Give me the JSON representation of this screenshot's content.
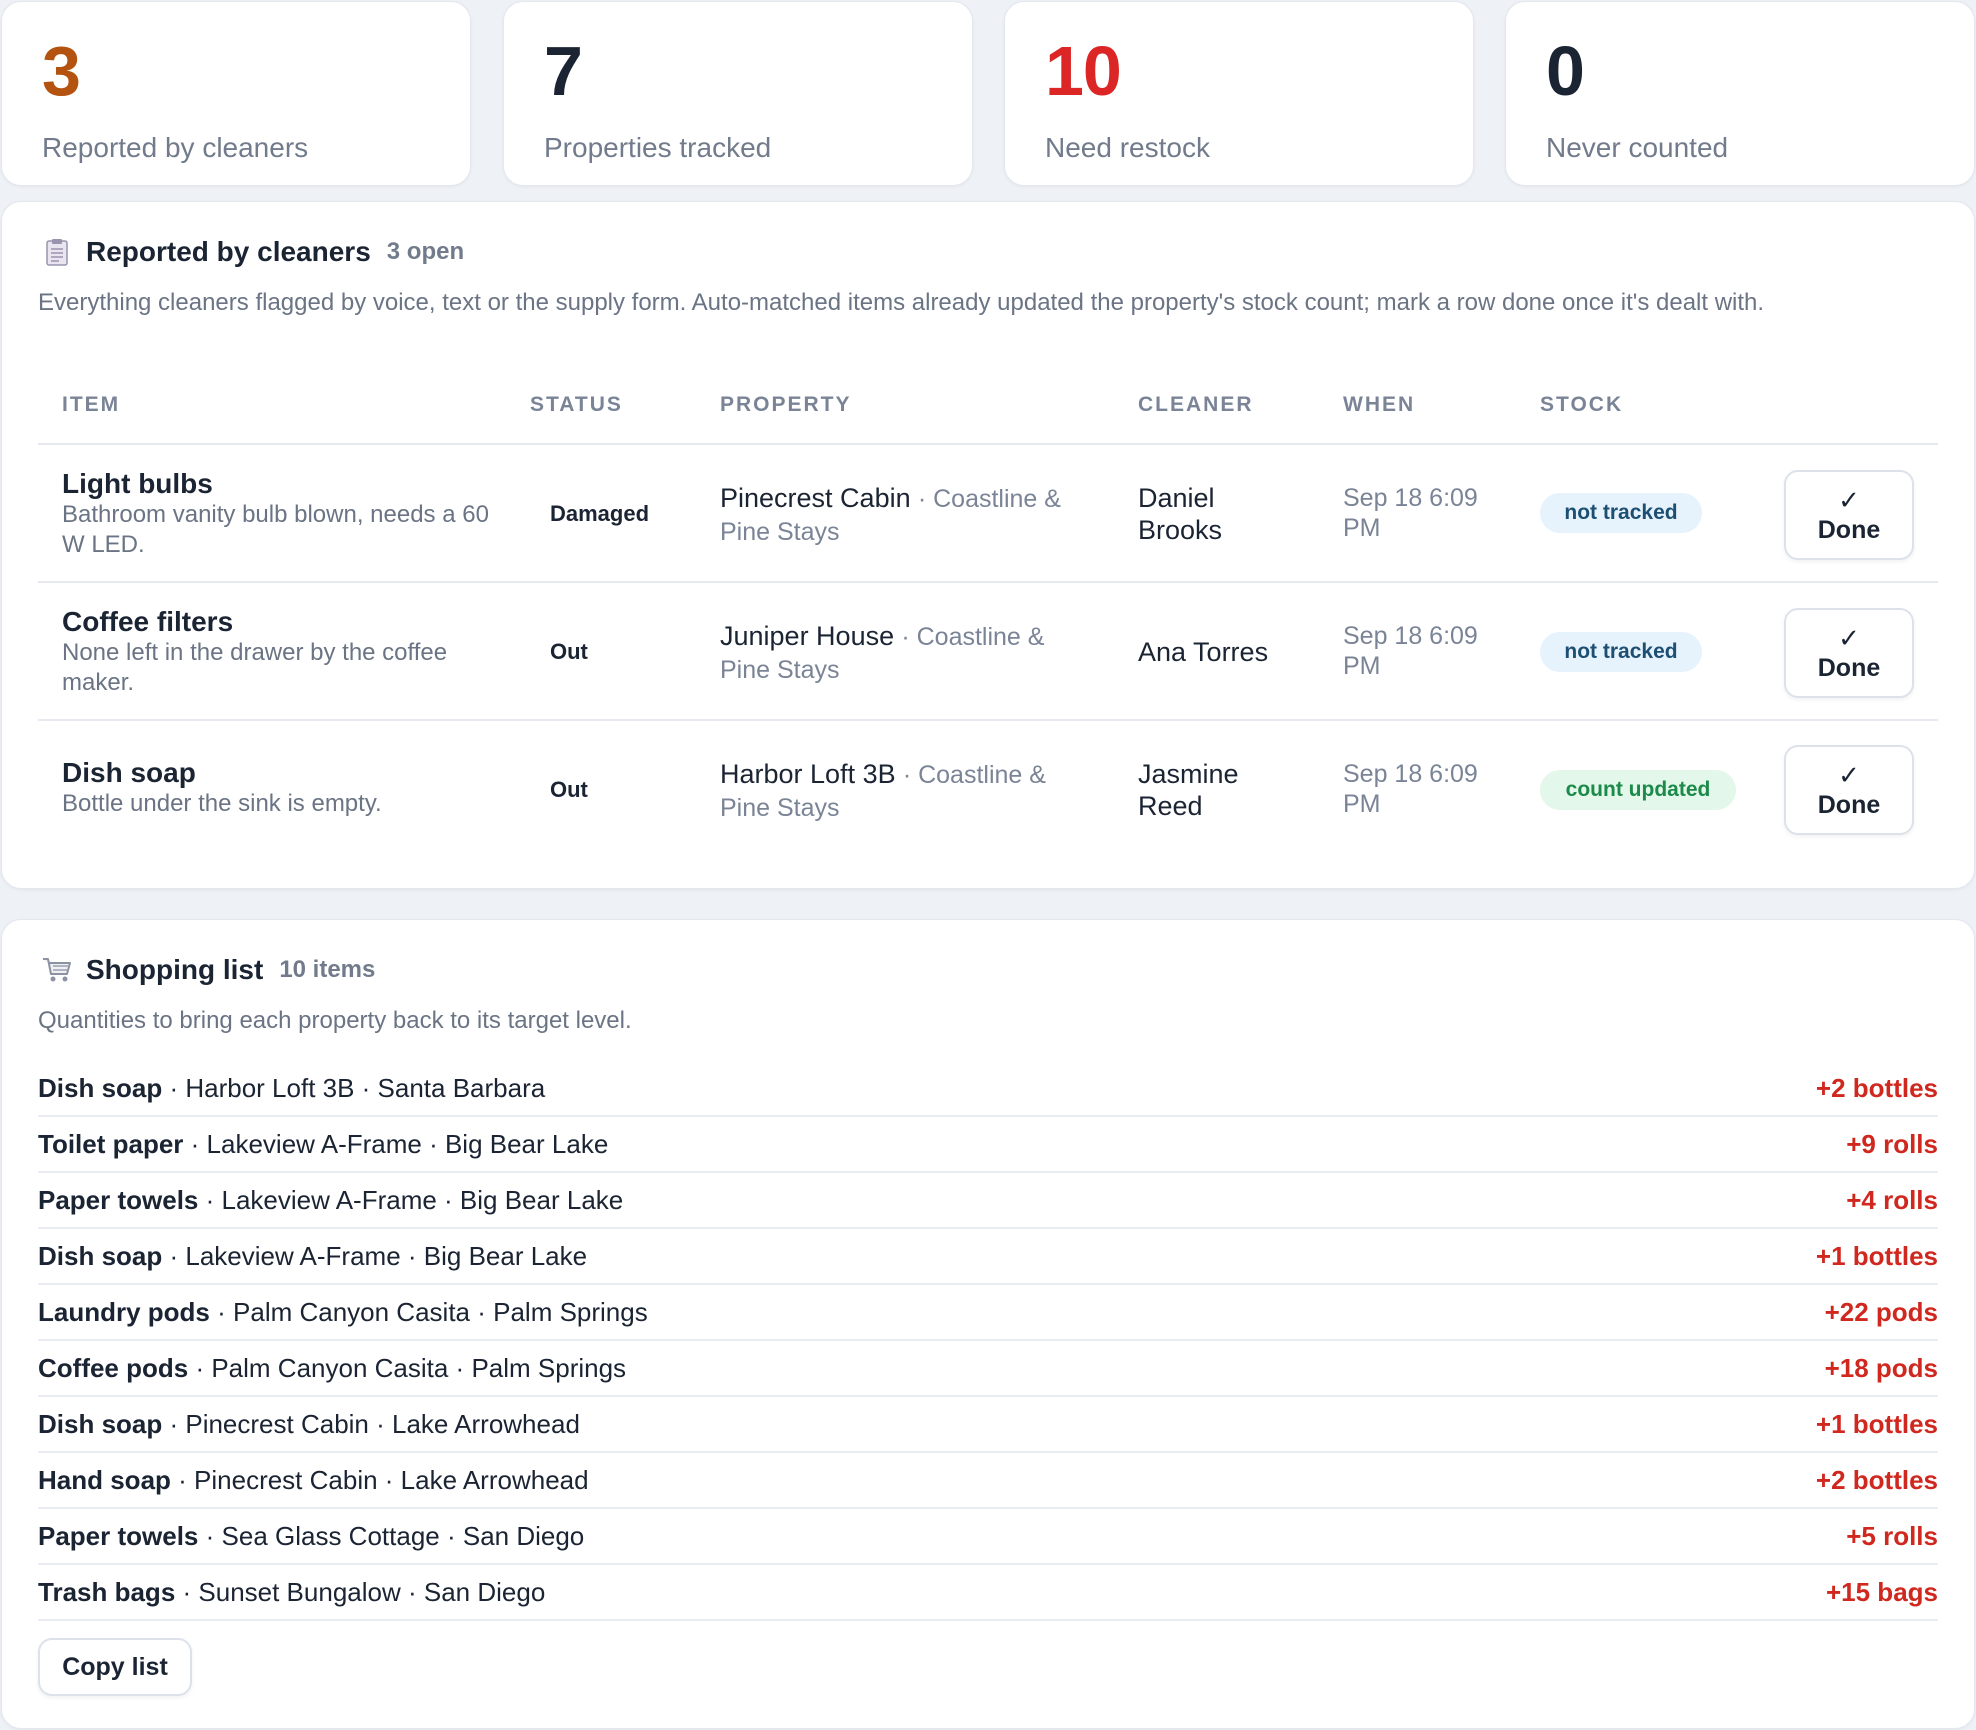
{
  "stats": [
    {
      "value": "3",
      "label": "Reported by cleaners",
      "color": "#b4530f"
    },
    {
      "value": "7",
      "label": "Properties tracked",
      "color": "#1b2433"
    },
    {
      "value": "10",
      "label": "Need restock",
      "color": "#dc2626"
    },
    {
      "value": "0",
      "label": "Never counted",
      "color": "#1b2433"
    }
  ],
  "reports": {
    "icon": "clipboard-icon",
    "title": "Reported by cleaners",
    "count": "3 open",
    "description": "Everything cleaners flagged by voice, text or the supply form. Auto-matched items already updated the property's stock count; mark a row done once it's dealt with.",
    "columns": [
      "ITEM",
      "STATUS",
      "PROPERTY",
      "CLEANER",
      "WHEN",
      "STOCK"
    ],
    "rows": [
      {
        "item": "Light bulbs",
        "note": "Bathroom vanity bulb blown, needs a 60 W LED.",
        "status": "Damaged",
        "property": "Pinecrest Cabin",
        "company": "· Coastline & Pine Stays",
        "cleaner": "Daniel Brooks",
        "when": "Sep 18 6:09 PM",
        "stock": "not tracked",
        "stock_kind": "blue",
        "done_check": "✓",
        "done_label": "Done"
      },
      {
        "item": "Coffee filters",
        "note": "None left in the drawer by the coffee maker.",
        "status": "Out",
        "property": "Juniper House",
        "company": "· Coastline & Pine Stays",
        "cleaner": "Ana Torres",
        "when": "Sep 18 6:09 PM",
        "stock": "not tracked",
        "stock_kind": "blue",
        "done_check": "✓",
        "done_label": "Done"
      },
      {
        "item": "Dish soap",
        "note": "Bottle under the sink is empty.",
        "status": "Out",
        "property": "Harbor Loft 3B",
        "company": "· Coastline & Pine Stays",
        "cleaner": "Jasmine Reed",
        "when": "Sep 18 6:09 PM",
        "stock": "count updated",
        "stock_kind": "green",
        "done_check": "✓",
        "done_label": "Done"
      }
    ]
  },
  "shopping": {
    "icon": "shopping-cart-icon",
    "title": "Shopping list",
    "count": "10 items",
    "description": "Quantities to bring each property back to its target level.",
    "items": [
      {
        "name": "Dish soap",
        "detail": " · Harbor Loft 3B · Santa Barbara",
        "qty": "+2 bottles"
      },
      {
        "name": "Toilet paper",
        "detail": " · Lakeview A-Frame · Big Bear Lake",
        "qty": "+9 rolls"
      },
      {
        "name": "Paper towels",
        "detail": " · Lakeview A-Frame · Big Bear Lake",
        "qty": "+4 rolls"
      },
      {
        "name": "Dish soap",
        "detail": " · Lakeview A-Frame · Big Bear Lake",
        "qty": "+1 bottles"
      },
      {
        "name": "Laundry pods",
        "detail": " · Palm Canyon Casita · Palm Springs",
        "qty": "+22 pods"
      },
      {
        "name": "Coffee pods",
        "detail": " · Palm Canyon Casita · Palm Springs",
        "qty": "+18 pods"
      },
      {
        "name": "Dish soap",
        "detail": " · Pinecrest Cabin · Lake Arrowhead",
        "qty": "+1 bottles"
      },
      {
        "name": "Hand soap",
        "detail": " · Pinecrest Cabin · Lake Arrowhead",
        "qty": "+2 bottles"
      },
      {
        "name": "Paper towels",
        "detail": " · Sea Glass Cottage · San Diego",
        "qty": "+5 rolls"
      },
      {
        "name": "Trash bags",
        "detail": " · Sunset Bungalow · San Diego",
        "qty": "+15 bags"
      }
    ],
    "copy_label": "Copy list"
  }
}
